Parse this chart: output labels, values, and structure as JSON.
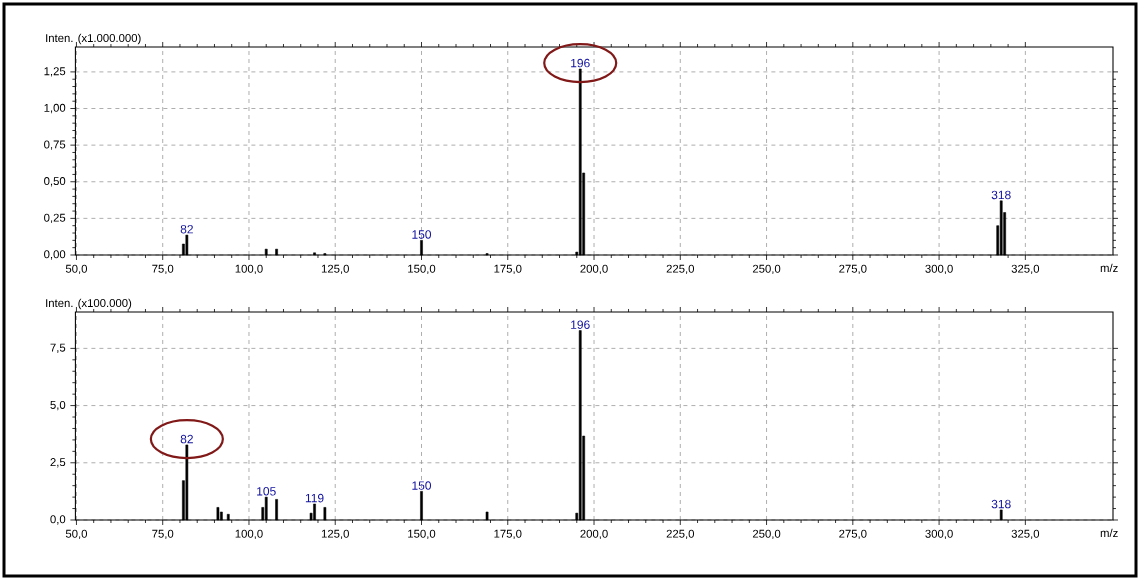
{
  "chart_data": [
    {
      "type": "bar",
      "xlabel": "m/z",
      "ylabel": "Inten. (x1.000.000)",
      "color": "#000000",
      "grid": true,
      "x": [
        81,
        82,
        105,
        108,
        119,
        122,
        150,
        169,
        195,
        196,
        197,
        317,
        318,
        319
      ],
      "values": [
        0.075,
        0.136,
        0.04,
        0.04,
        0.015,
        0.01,
        0.1,
        0.01,
        0.02,
        1.27,
        0.56,
        0.2,
        0.37,
        0.29
      ],
      "xlim": [
        49.7,
        350.4
      ],
      "ylim": [
        0,
        1.42
      ],
      "xticks": [
        {
          "value": 50,
          "label": "50,0"
        },
        {
          "value": 75,
          "label": "75,0"
        },
        {
          "value": 100,
          "label": "100,0"
        },
        {
          "value": 125,
          "label": "125,0"
        },
        {
          "value": 150,
          "label": "150,0"
        },
        {
          "value": 175,
          "label": "175,0"
        },
        {
          "value": 200,
          "label": "200,0"
        },
        {
          "value": 225,
          "label": "225,0"
        },
        {
          "value": 250,
          "label": "250,0"
        },
        {
          "value": 275,
          "label": "275,0"
        },
        {
          "value": 300,
          "label": "300,0"
        },
        {
          "value": 325,
          "label": "325,0"
        }
      ],
      "yticks": [
        {
          "value": 0,
          "label": "0,00"
        },
        {
          "value": 0.25,
          "label": "0,25"
        },
        {
          "value": 0.5,
          "label": "0,50"
        },
        {
          "value": 0.75,
          "label": "0,75"
        },
        {
          "value": 1,
          "label": "1,00"
        },
        {
          "value": 1.25,
          "label": "1,25"
        }
      ],
      "annotations": [
        {
          "text": "82",
          "x": 82,
          "y": 0.136
        },
        {
          "text": "150",
          "x": 150,
          "y": 0.1
        },
        {
          "text": "196",
          "x": 196,
          "y": 1.27
        },
        {
          "text": "318",
          "x": 318,
          "y": 0.37
        }
      ]
    },
    {
      "type": "bar",
      "xlabel": "m/z",
      "ylabel": "Inten. (x100.000)",
      "color": "#000000",
      "grid": true,
      "x": [
        81,
        82,
        91,
        92,
        94,
        104,
        105,
        108,
        118,
        119,
        122,
        150,
        169,
        195,
        196,
        197,
        318
      ],
      "values": [
        1.72,
        3.28,
        0.55,
        0.35,
        0.25,
        0.55,
        1.0,
        0.9,
        0.3,
        0.7,
        0.55,
        1.25,
        0.35,
        0.3,
        8.28,
        3.67,
        0.44
      ],
      "xlim": [
        49.7,
        350.4
      ],
      "ylim": [
        0,
        9.09
      ],
      "xticks": [
        {
          "value": 50,
          "label": "50,0"
        },
        {
          "value": 75,
          "label": "75,0"
        },
        {
          "value": 100,
          "label": "100,0"
        },
        {
          "value": 125,
          "label": "125,0"
        },
        {
          "value": 150,
          "label": "150,0"
        },
        {
          "value": 175,
          "label": "175,0"
        },
        {
          "value": 200,
          "label": "200,0"
        },
        {
          "value": 225,
          "label": "225,0"
        },
        {
          "value": 250,
          "label": "250,0"
        },
        {
          "value": 275,
          "label": "275,0"
        },
        {
          "value": 300,
          "label": "300,0"
        },
        {
          "value": 325,
          "label": "325,0"
        }
      ],
      "yticks": [
        {
          "value": 0,
          "label": "0,0"
        },
        {
          "value": 2.5,
          "label": "2,5"
        },
        {
          "value": 5,
          "label": "5,0"
        },
        {
          "value": 7.5,
          "label": "7,5"
        }
      ],
      "annotations": [
        {
          "text": "82",
          "x": 82,
          "y": 3.28
        },
        {
          "text": "105",
          "x": 105,
          "y": 1.0
        },
        {
          "text": "119",
          "x": 119,
          "y": 0.7
        },
        {
          "text": "150",
          "x": 150,
          "y": 1.25
        },
        {
          "text": "196",
          "x": 196,
          "y": 8.28
        },
        {
          "text": "318",
          "x": 318,
          "y": 0.44
        }
      ]
    }
  ]
}
